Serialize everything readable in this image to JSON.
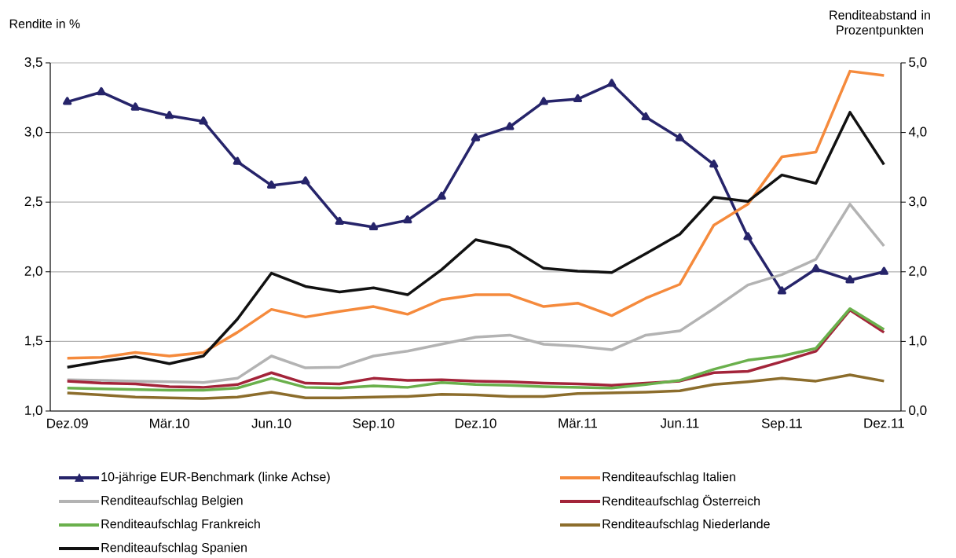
{
  "chart_data": {
    "type": "line",
    "ylabel": "Rendite in %",
    "y2label": "Renditeabstand in Prozentpunkten",
    "categories": [
      "Dez.09",
      null,
      null,
      "Mär.10",
      null,
      null,
      "Jun.10",
      null,
      null,
      "Sep.10",
      null,
      null,
      "Dez.10",
      null,
      null,
      "Mär.11",
      null,
      null,
      "Jun.11",
      null,
      null,
      "Sep.11",
      null,
      null,
      "Dez.11"
    ],
    "series": [
      {
        "name": "10-jährige EUR-Benchmark (linke Achse)",
        "color": "#26246a",
        "marker": "triangle",
        "values": [
          3.22,
          3.29,
          3.18,
          3.12,
          3.08,
          2.79,
          2.62,
          2.65,
          2.36,
          2.32,
          2.37,
          2.54,
          2.96,
          3.04,
          3.22,
          3.24,
          3.35,
          3.11,
          2.96,
          2.77,
          2.25,
          1.86,
          2.02,
          1.94,
          2.0
        ]
      },
      {
        "name": "Renditeaufschlag Italien",
        "color": "#f58a3c",
        "axis": "y2",
        "values": [
          0.76,
          0.77,
          0.84,
          0.79,
          0.84,
          1.13,
          1.46,
          1.35,
          1.43,
          1.5,
          1.39,
          1.6,
          1.67,
          1.67,
          1.5,
          1.55,
          1.37,
          1.62,
          1.82,
          2.67,
          2.97,
          3.65,
          3.72,
          4.88,
          4.82
        ]
      },
      {
        "name": "Renditeaufschlag Belgien",
        "color": "#b3b3b3",
        "axis": "y2",
        "values": [
          0.45,
          0.44,
          0.43,
          0.42,
          0.41,
          0.47,
          0.79,
          0.62,
          0.63,
          0.79,
          0.86,
          0.96,
          1.06,
          1.09,
          0.96,
          0.93,
          0.88,
          1.09,
          1.15,
          1.47,
          1.81,
          1.96,
          2.18,
          2.97,
          2.37
        ]
      },
      {
        "name": "Renditeaufschlag Österreich",
        "color": "#a3243a",
        "axis": "y2",
        "values": [
          0.43,
          0.4,
          0.39,
          0.35,
          0.34,
          0.38,
          0.55,
          0.4,
          0.39,
          0.47,
          0.44,
          0.45,
          0.43,
          0.42,
          0.4,
          0.39,
          0.37,
          0.4,
          0.43,
          0.55,
          0.57,
          0.71,
          0.86,
          1.45,
          1.13
        ]
      },
      {
        "name": "Renditeaufschlag Frankreich",
        "color": "#6ab04c",
        "axis": "y2",
        "values": [
          0.33,
          0.32,
          0.31,
          0.3,
          0.3,
          0.33,
          0.47,
          0.34,
          0.33,
          0.36,
          0.34,
          0.41,
          0.38,
          0.37,
          0.35,
          0.34,
          0.33,
          0.38,
          0.44,
          0.6,
          0.73,
          0.79,
          0.9,
          1.47,
          1.17
        ]
      },
      {
        "name": "Renditeaufschlag Niederlande",
        "color": "#8c6d2c",
        "axis": "y2",
        "values": [
          0.26,
          0.23,
          0.2,
          0.19,
          0.18,
          0.2,
          0.27,
          0.19,
          0.19,
          0.2,
          0.21,
          0.24,
          0.23,
          0.21,
          0.21,
          0.25,
          0.26,
          0.27,
          0.29,
          0.38,
          0.42,
          0.47,
          0.43,
          0.52,
          0.43
        ]
      },
      {
        "name": "Renditeaufschlag Spanien",
        "color": "#111111",
        "axis": "y2",
        "values": [
          0.63,
          0.71,
          0.78,
          0.68,
          0.79,
          1.32,
          1.98,
          1.79,
          1.71,
          1.77,
          1.67,
          2.03,
          2.46,
          2.35,
          2.05,
          2.01,
          1.99,
          2.26,
          2.54,
          3.07,
          3.01,
          3.39,
          3.27,
          4.29,
          3.54
        ]
      }
    ],
    "ylim": [
      1.0,
      3.5
    ],
    "yticks": [
      {
        "value": 1.0,
        "label": "1,0"
      },
      {
        "value": 1.5,
        "label": "1,5"
      },
      {
        "value": 2.0,
        "label": "2,0"
      },
      {
        "value": 2.5,
        "label": "2,5"
      },
      {
        "value": 3.0,
        "label": "3,0"
      },
      {
        "value": 3.5,
        "label": "3,5"
      }
    ],
    "y2lim": [
      0.0,
      5.0
    ],
    "y2ticks": [
      {
        "value": 0.0,
        "label": "0,0"
      },
      {
        "value": 1.0,
        "label": "1,0"
      },
      {
        "value": 2.0,
        "label": "2,0"
      },
      {
        "value": 3.0,
        "label": "3,0"
      },
      {
        "value": 4.0,
        "label": "4,0"
      },
      {
        "value": 5.0,
        "label": "5,0"
      }
    ],
    "grid": "y",
    "legend": "bottom"
  }
}
